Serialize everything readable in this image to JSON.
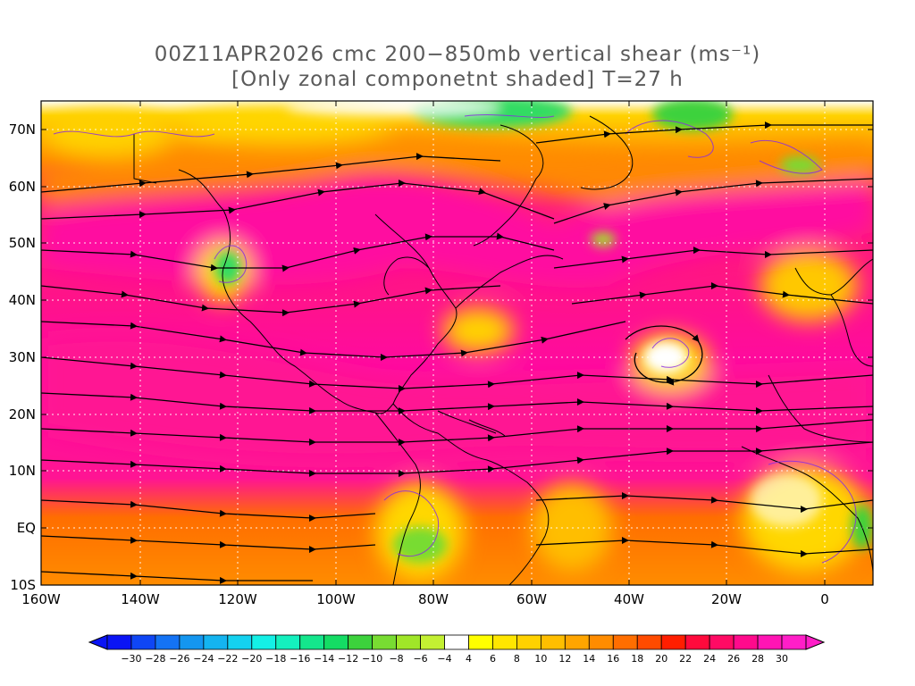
{
  "title": {
    "line1": "00Z11APR2026 cmc 200−850mb vertical shear (ms⁻¹)",
    "line2": "[Only zonal componetnt shaded] T=27 h"
  },
  "map": {
    "lat_labels": [
      "70N",
      "60N",
      "50N",
      "40N",
      "30N",
      "20N",
      "10N",
      "EQ",
      "10S"
    ],
    "lon_labels": [
      "160W",
      "140W",
      "120W",
      "100W",
      "80W",
      "60W",
      "40W",
      "20W",
      "0"
    ],
    "lat_range": [
      -10,
      75
    ],
    "lon_range": [
      -160,
      10
    ],
    "colors": {
      "strong_shear": "#ff1493",
      "magenta": "#ff0aa0",
      "orange": "#ff8c00",
      "yellow": "#ffd700",
      "green": "#32dc64"
    }
  },
  "colorbar": {
    "labels": [
      "−30",
      "−28",
      "−26",
      "−24",
      "−22",
      "−20",
      "−18",
      "−16",
      "−14",
      "−12",
      "−10",
      "−8",
      "−6",
      "−4",
      "4",
      "6",
      "8",
      "10",
      "12",
      "14",
      "16",
      "18",
      "20",
      "22",
      "24",
      "26",
      "28",
      "30"
    ],
    "colors": [
      "#0a14f5",
      "#0f46f5",
      "#1473f5",
      "#1496f0",
      "#14b4f0",
      "#14d2f0",
      "#14f0e6",
      "#14f0be",
      "#14e68c",
      "#14dc64",
      "#3cd23c",
      "#78dc32",
      "#a0e628",
      "#c3f032",
      "#ffffff",
      "#ffff00",
      "#ffe600",
      "#ffd200",
      "#ffbe00",
      "#ffa500",
      "#ff8c00",
      "#ff6e00",
      "#ff4b00",
      "#ff1e00",
      "#ff0a3c",
      "#ff0a64",
      "#ff0a8c",
      "#ff14b4",
      "#ff1ec8"
    ]
  }
}
